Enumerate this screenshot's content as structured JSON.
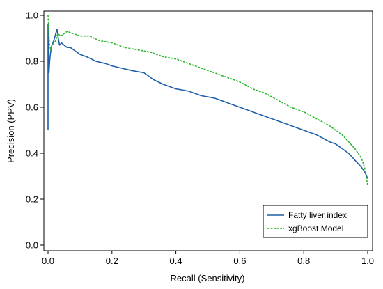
{
  "chart_data": {
    "type": "line",
    "title": "",
    "xlabel": "Recall (Sensitivity)",
    "ylabel": "Precision (PPV)",
    "xlim": [
      0,
      1
    ],
    "ylim": [
      0,
      1
    ],
    "x_ticks": [
      0.0,
      0.2,
      0.4,
      0.6,
      0.8,
      1.0
    ],
    "x_tick_labels": [
      "0.0",
      "0.2",
      "0.4",
      "0.6",
      "0.8",
      "1.0"
    ],
    "y_ticks": [
      0.0,
      0.2,
      0.4,
      0.6,
      0.8,
      1.0
    ],
    "y_tick_labels": [
      "0.0",
      "0.2",
      "0.4",
      "0.6",
      "0.8",
      "1.0"
    ],
    "grid": false,
    "legend_position": "bottom-right",
    "series": [
      {
        "name": "Fatty liver index",
        "color": "#1f5fa8",
        "style": "solid",
        "x": [
          0.0,
          0.0,
          0.003,
          0.005,
          0.008,
          0.012,
          0.018,
          0.024,
          0.028,
          0.032,
          0.036,
          0.042,
          0.05,
          0.06,
          0.07,
          0.08,
          0.1,
          0.12,
          0.15,
          0.18,
          0.2,
          0.23,
          0.26,
          0.3,
          0.33,
          0.36,
          0.4,
          0.44,
          0.48,
          0.52,
          0.56,
          0.6,
          0.64,
          0.68,
          0.72,
          0.76,
          0.8,
          0.84,
          0.88,
          0.9,
          0.92,
          0.94,
          0.96,
          0.98,
          0.99,
          1.0
        ],
        "y": [
          0.5,
          0.96,
          0.75,
          0.8,
          0.84,
          0.87,
          0.89,
          0.92,
          0.94,
          0.9,
          0.87,
          0.88,
          0.87,
          0.86,
          0.86,
          0.85,
          0.83,
          0.82,
          0.8,
          0.79,
          0.78,
          0.77,
          0.76,
          0.75,
          0.72,
          0.7,
          0.68,
          0.67,
          0.65,
          0.64,
          0.62,
          0.6,
          0.58,
          0.56,
          0.54,
          0.52,
          0.5,
          0.48,
          0.45,
          0.44,
          0.42,
          0.4,
          0.37,
          0.34,
          0.32,
          0.29
        ]
      },
      {
        "name": "xgBoost Model",
        "color": "#2db52d",
        "style": "dashed",
        "x": [
          0.0,
          0.002,
          0.004,
          0.008,
          0.012,
          0.018,
          0.024,
          0.03,
          0.04,
          0.05,
          0.06,
          0.08,
          0.1,
          0.13,
          0.16,
          0.2,
          0.24,
          0.28,
          0.32,
          0.36,
          0.4,
          0.44,
          0.48,
          0.52,
          0.56,
          0.6,
          0.64,
          0.68,
          0.72,
          0.76,
          0.8,
          0.84,
          0.88,
          0.9,
          0.92,
          0.94,
          0.96,
          0.98,
          0.99,
          1.0
        ],
        "y": [
          1.0,
          0.95,
          0.88,
          0.85,
          0.87,
          0.88,
          0.89,
          0.92,
          0.91,
          0.92,
          0.93,
          0.92,
          0.91,
          0.91,
          0.89,
          0.88,
          0.86,
          0.85,
          0.84,
          0.82,
          0.81,
          0.79,
          0.77,
          0.75,
          0.73,
          0.71,
          0.68,
          0.66,
          0.63,
          0.6,
          0.58,
          0.55,
          0.52,
          0.5,
          0.48,
          0.45,
          0.42,
          0.38,
          0.34,
          0.26
        ]
      }
    ]
  }
}
